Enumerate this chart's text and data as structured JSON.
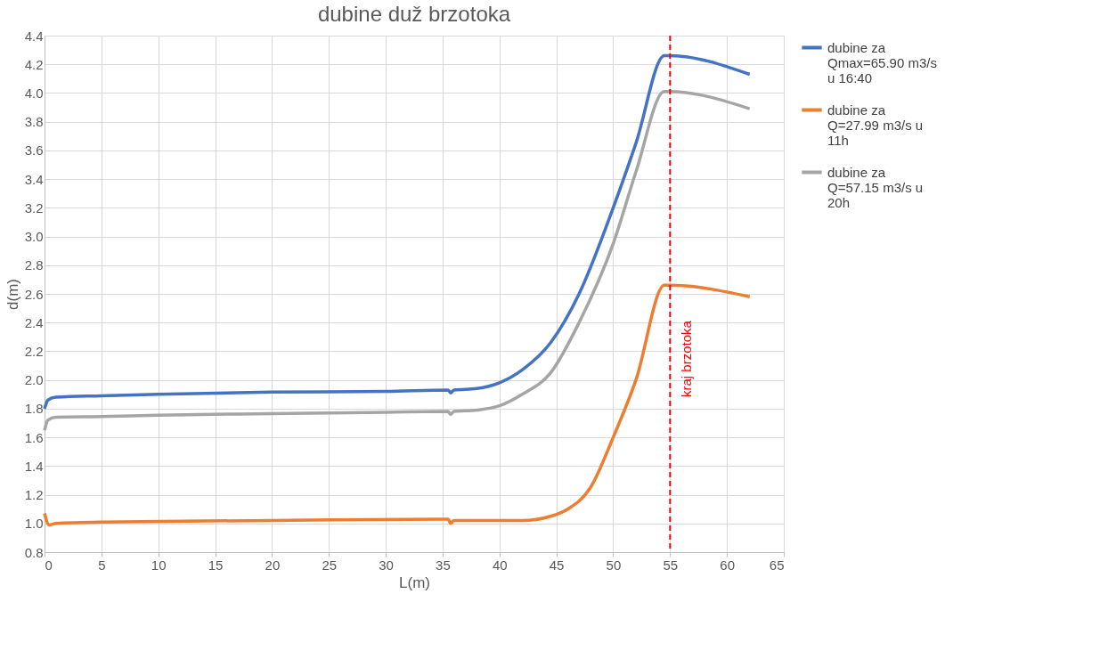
{
  "chart_data": {
    "type": "line",
    "title": "dubine duž brzotoka",
    "xlabel": "L(m)",
    "ylabel": "d(m)",
    "xlim": [
      0,
      65
    ],
    "xticks": [
      0,
      5,
      10,
      15,
      20,
      25,
      30,
      35,
      40,
      45,
      50,
      55,
      60,
      65
    ],
    "ylim": [
      0.8,
      4.4
    ],
    "yticks": [
      {
        "value": 0.8,
        "label": "0.8"
      },
      {
        "value": 1.0,
        "label": "1.0"
      },
      {
        "value": 1.2,
        "label": "1.2"
      },
      {
        "value": 1.4,
        "label": "1.4"
      },
      {
        "value": 1.6,
        "label": "1.6"
      },
      {
        "value": 1.8,
        "label": "1.8"
      },
      {
        "value": 2.0,
        "label": "2.0"
      },
      {
        "value": 2.2,
        "label": "2.2"
      },
      {
        "value": 2.4,
        "label": "2.4"
      },
      {
        "value": 2.6,
        "label": "2.6"
      },
      {
        "value": 2.8,
        "label": "2.8"
      },
      {
        "value": 3.0,
        "label": "3.0"
      },
      {
        "value": 3.2,
        "label": "3.2"
      },
      {
        "value": 3.4,
        "label": "3.4"
      },
      {
        "value": 3.6,
        "label": "3.6"
      },
      {
        "value": 3.8,
        "label": "3.8"
      },
      {
        "value": 4.0,
        "label": "4.0"
      },
      {
        "value": 4.2,
        "label": "4.2"
      },
      {
        "value": 4.4,
        "label": "4.4"
      }
    ],
    "grid": true,
    "legend": "right",
    "marker": "none",
    "line_style": "solid",
    "series": [
      {
        "name": "dubine za Qmax=65.90 m3/s u 16:40",
        "color": "#4472c4",
        "x": [
          0,
          0.3,
          1,
          5,
          10,
          20,
          30,
          35.5,
          35.7,
          36,
          38,
          40,
          42,
          44.5,
          47,
          50,
          52,
          54.5,
          55,
          62
        ],
        "values": [
          1.8,
          1.86,
          1.88,
          1.89,
          1.9,
          1.915,
          1.92,
          1.93,
          1.91,
          1.93,
          1.94,
          1.98,
          2.07,
          2.26,
          2.6,
          3.2,
          3.65,
          4.26,
          4.26,
          4.13
        ]
      },
      {
        "name": "dubine za Q=27.99 m3/s u 11h",
        "color": "#ed7d31",
        "x": [
          0,
          0.4,
          1,
          5,
          20,
          35.5,
          35.7,
          36,
          42,
          44.5,
          46,
          48,
          50,
          52,
          54.5,
          55,
          62
        ],
        "values": [
          1.07,
          0.99,
          1.0,
          1.01,
          1.02,
          1.03,
          1.0,
          1.02,
          1.02,
          1.05,
          1.1,
          1.25,
          1.6,
          2.0,
          2.66,
          2.66,
          2.58
        ]
      },
      {
        "name": "dubine za Q=57.15 m3/s u 20h",
        "color": "#a5a5a5",
        "x": [
          0,
          0.3,
          1,
          5,
          10,
          20,
          30,
          35.5,
          35.7,
          36,
          38,
          40,
          42,
          44.5,
          47,
          50,
          52,
          54.5,
          55,
          62
        ],
        "values": [
          1.65,
          1.72,
          1.74,
          1.745,
          1.755,
          1.765,
          1.775,
          1.78,
          1.76,
          1.78,
          1.79,
          1.82,
          1.9,
          2.05,
          2.4,
          2.95,
          3.45,
          4.01,
          4.01,
          3.89
        ]
      }
    ],
    "ref_lines": [
      {
        "axis": "x",
        "value": 55,
        "label": "kraj brzotoka",
        "color": "#ff0000",
        "line_style": "dashed"
      }
    ]
  }
}
